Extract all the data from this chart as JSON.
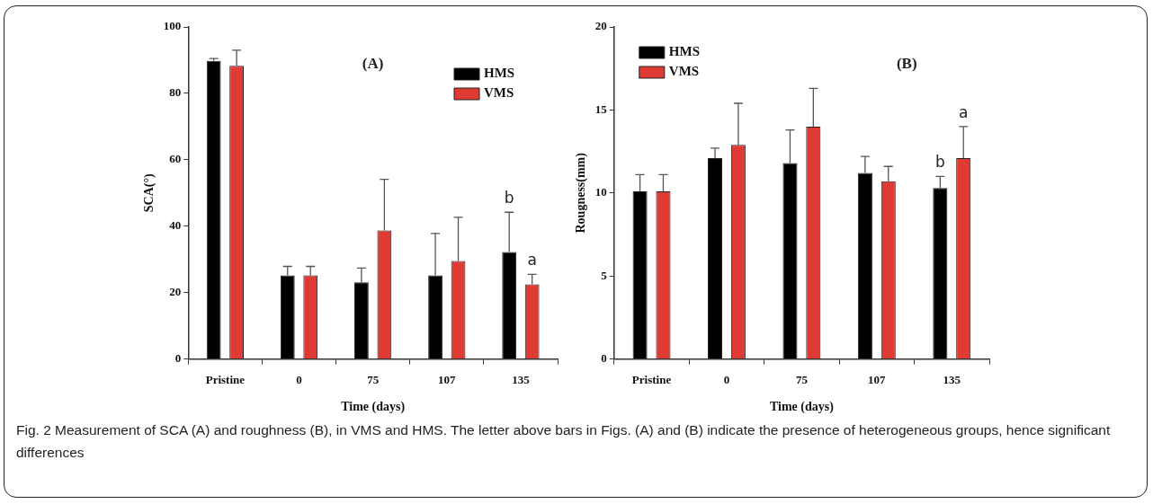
{
  "chart_data": [
    {
      "type": "bar",
      "title": "(A)",
      "xlabel": "Time (days)",
      "ylabel": "SCA(°)",
      "categories": [
        "Pristine",
        "0",
        "75",
        "107",
        "135"
      ],
      "series": [
        {
          "name": "HMS",
          "color": "#000000",
          "values": [
            89.8,
            25.2,
            23.1,
            25.2,
            32.2
          ],
          "errors": [
            [
              89.8,
              90.5
            ],
            [
              25.2,
              27.9
            ],
            [
              23.1,
              27.4
            ],
            [
              25.2,
              37.8
            ],
            [
              32.2,
              44.2
            ]
          ]
        },
        {
          "name": "VMS",
          "color": "#e03a34",
          "values": [
            88.3,
            25.2,
            38.7,
            29.5,
            22.5
          ],
          "errors": [
            [
              88.3,
              93.0
            ],
            [
              25.2,
              27.9
            ],
            [
              38.7,
              54.1
            ],
            [
              29.5,
              42.7
            ],
            [
              22.5,
              25.5
            ]
          ]
        }
      ],
      "ylim": [
        0,
        100
      ],
      "yticks": [
        0,
        20,
        40,
        60,
        80,
        100
      ],
      "legend": "top right",
      "annotations": [
        "b",
        "a",
        "Fig. 2 Measurement of SCA (A) and roughness (B), in VMS and HMS. The letter above bars in Figs. (A) and (B) indicate the presence of heterogeneous groups, hence significant differences"
      ]
    },
    {
      "type": "bar",
      "title": "(B)",
      "xlabel": "Time (days)",
      "ylabel": "Rougness(mm)",
      "categories": [
        "Pristine",
        "0",
        "75",
        "107",
        "135"
      ],
      "series": [
        {
          "name": "HMS",
          "color": "#000000",
          "values": [
            10.1,
            12.1,
            11.8,
            11.2,
            10.3
          ],
          "errors": [
            [
              10.1,
              11.1
            ],
            [
              12.1,
              12.7
            ],
            [
              11.8,
              13.8
            ],
            [
              11.2,
              12.2
            ],
            [
              10.3,
              11.0
            ]
          ]
        },
        {
          "name": "VMS",
          "color": "#e03a34",
          "values": [
            10.1,
            12.9,
            14.0,
            10.7,
            12.1
          ],
          "errors": [
            [
              10.1,
              11.1
            ],
            [
              12.9,
              15.4
            ],
            [
              14.0,
              16.3
            ],
            [
              10.7,
              11.6
            ],
            [
              12.1,
              14.0
            ]
          ]
        }
      ],
      "ylim": [
        0,
        20
      ],
      "yticks": [
        0,
        5,
        10,
        15,
        20
      ],
      "legend": "top left",
      "annotations": [
        "b",
        "a"
      ]
    }
  ]
}
